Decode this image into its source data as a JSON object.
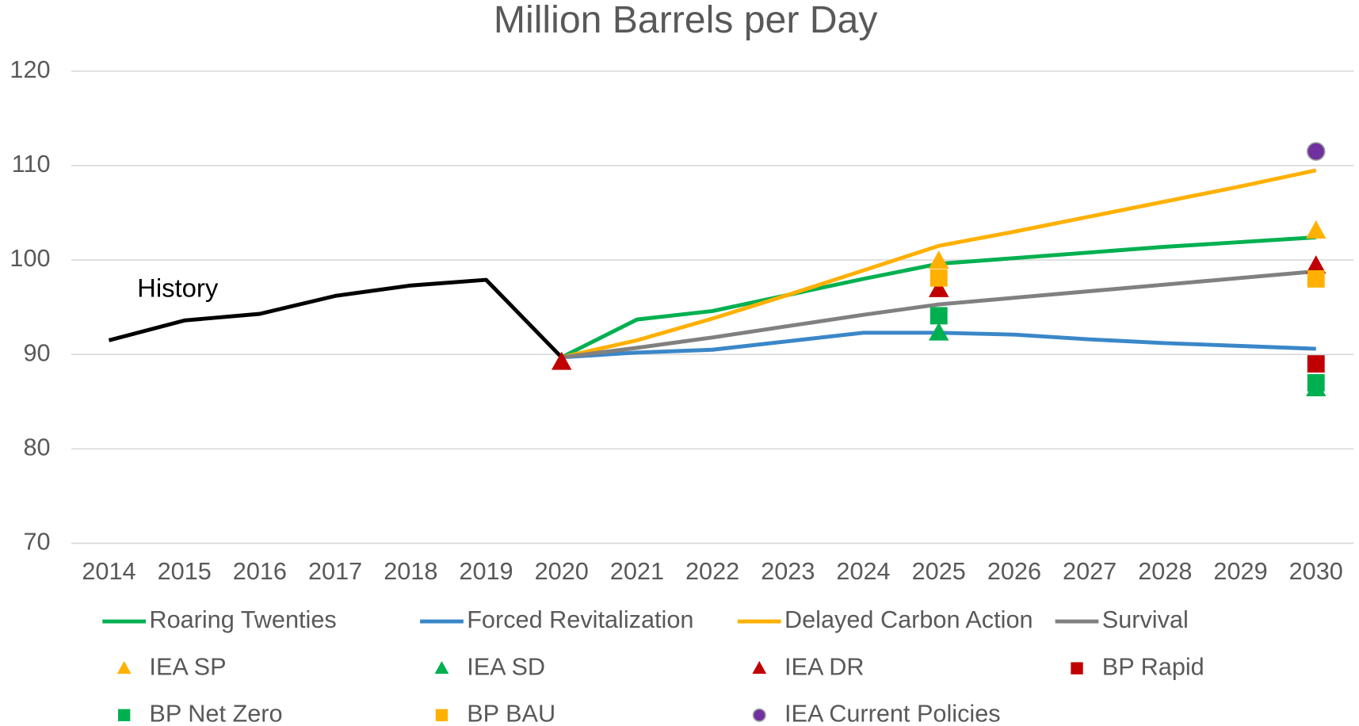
{
  "chart_data": {
    "type": "line",
    "title": "Million Barrels per Day",
    "categories": [
      "2014",
      "2015",
      "2016",
      "2017",
      "2018",
      "2019",
      "2020",
      "2021",
      "2022",
      "2023",
      "2024",
      "2025",
      "2026",
      "2027",
      "2028",
      "2029",
      "2030"
    ],
    "ylim": [
      70,
      120
    ],
    "yticks": [
      70,
      80,
      90,
      100,
      110,
      120
    ],
    "grid": true,
    "annotations": [
      "History"
    ],
    "history": {
      "color": "#000000",
      "values": [
        91.5,
        93.6,
        94.3,
        96.2,
        97.3,
        97.9,
        89.7,
        null,
        null,
        null,
        null,
        null,
        null,
        null,
        null,
        null,
        null
      ]
    },
    "series": [
      {
        "name": "Roaring Twenties",
        "color": "#00b050",
        "marker": "line",
        "values": [
          null,
          null,
          null,
          null,
          null,
          null,
          89.7,
          93.7,
          94.6,
          96.3,
          98.0,
          99.6,
          100.2,
          100.8,
          101.4,
          101.9,
          102.4
        ]
      },
      {
        "name": "Forced Revitalization",
        "color": "#3a87c8",
        "marker": "line",
        "values": [
          null,
          null,
          null,
          null,
          null,
          null,
          89.7,
          90.2,
          90.5,
          91.4,
          92.3,
          92.3,
          92.1,
          91.6,
          91.2,
          90.9,
          90.6
        ]
      },
      {
        "name": "Delayed Carbon Action",
        "color": "#ffb000",
        "marker": "line",
        "values": [
          null,
          null,
          null,
          null,
          null,
          null,
          89.7,
          91.5,
          93.8,
          96.3,
          98.9,
          101.5,
          103.0,
          104.6,
          106.2,
          107.8,
          109.5
        ]
      },
      {
        "name": "Survival",
        "color": "#808080",
        "marker": "line",
        "values": [
          null,
          null,
          null,
          null,
          null,
          null,
          89.7,
          90.7,
          91.8,
          93.0,
          94.2,
          95.3,
          96.0,
          96.7,
          97.4,
          98.1,
          98.8
        ]
      },
      {
        "name": "IEA SP",
        "color": "#ffb000",
        "marker": "triangle",
        "values": [
          null,
          null,
          null,
          null,
          null,
          null,
          null,
          null,
          null,
          null,
          null,
          99.9,
          null,
          null,
          null,
          null,
          103.1
        ]
      },
      {
        "name": "IEA SD",
        "color": "#00b050",
        "marker": "triangle",
        "values": [
          null,
          null,
          null,
          null,
          null,
          null,
          null,
          null,
          null,
          null,
          null,
          92.3,
          null,
          null,
          null,
          null,
          86.4
        ]
      },
      {
        "name": "IEA DR",
        "color": "#c00000",
        "marker": "triangle",
        "values": [
          null,
          null,
          null,
          null,
          null,
          null,
          89.2,
          null,
          null,
          null,
          null,
          96.9,
          null,
          null,
          null,
          null,
          99.4
        ]
      },
      {
        "name": "BP Rapid",
        "color": "#c00000",
        "marker": "square",
        "values": [
          null,
          null,
          null,
          null,
          null,
          null,
          null,
          null,
          null,
          null,
          null,
          null,
          null,
          null,
          null,
          null,
          89.0
        ]
      },
      {
        "name": "BP Net Zero",
        "color": "#00b050",
        "marker": "square",
        "values": [
          null,
          null,
          null,
          null,
          null,
          null,
          null,
          null,
          null,
          null,
          null,
          94.1,
          null,
          null,
          null,
          null,
          87.0
        ]
      },
      {
        "name": "BP BAU",
        "color": "#ffb000",
        "marker": "square",
        "values": [
          null,
          null,
          null,
          null,
          null,
          null,
          null,
          null,
          null,
          null,
          null,
          98.1,
          null,
          null,
          null,
          null,
          98.0
        ]
      },
      {
        "name": "IEA Current Policies",
        "color": "#7030a0",
        "marker": "circle",
        "values": [
          null,
          null,
          null,
          null,
          null,
          null,
          null,
          null,
          null,
          null,
          null,
          null,
          null,
          null,
          null,
          null,
          111.5
        ]
      }
    ]
  }
}
